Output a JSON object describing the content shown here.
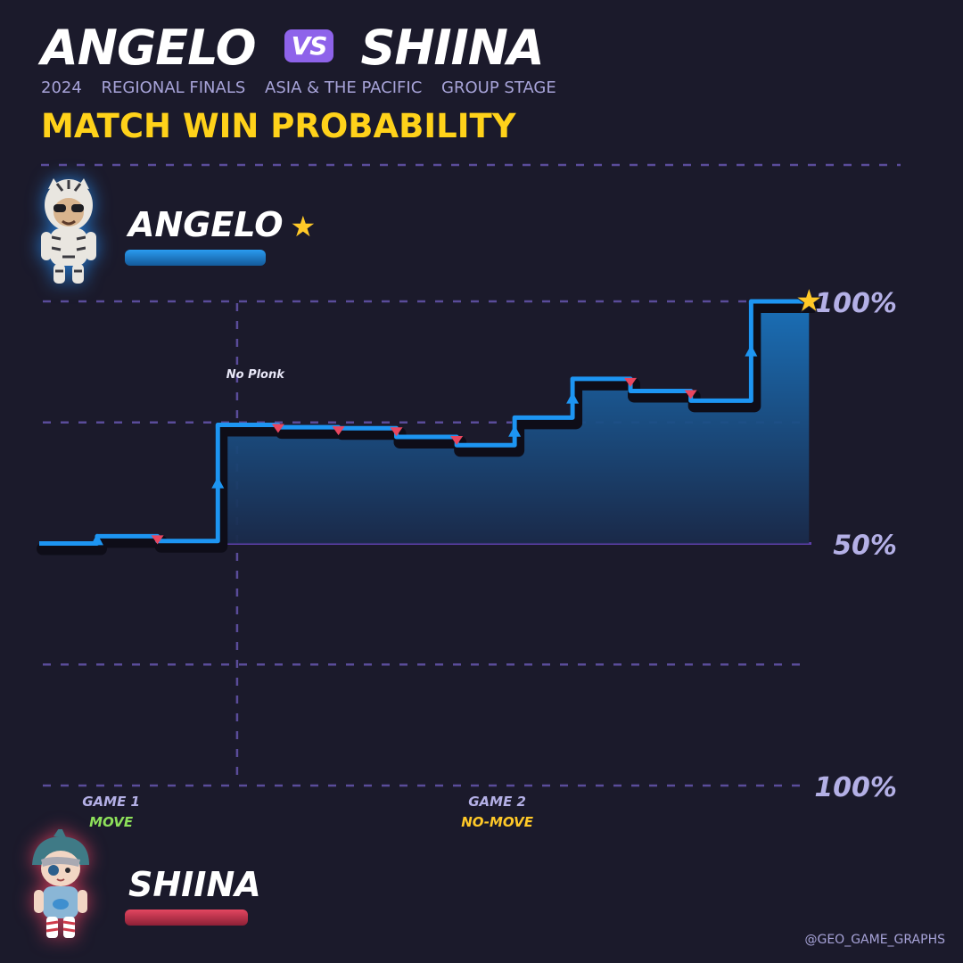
{
  "header": {
    "player1": "ANGELO",
    "vs": "VS",
    "player2": "SHIINA",
    "subtitle": [
      "2024",
      "REGIONAL FINALS",
      "ASIA & THE PACIFIC",
      "GROUP STAGE"
    ],
    "heading": "MATCH WIN PROBABILITY"
  },
  "players": {
    "top": {
      "name": "ANGELO",
      "winner_star": "★",
      "color": "#1e8cef"
    },
    "bottom": {
      "name": "SHIINA",
      "color": "#e0455e"
    }
  },
  "credit": "@GEO_GAME_GRAPHS",
  "colors": {
    "background": "#1b1a2b",
    "line": "#1d95f2",
    "up_marker": "#1d95f2",
    "down_marker": "#e8465f",
    "grid": "#5a4c9a",
    "tick_label": "#b4b0e6",
    "gold": "#ffd21a"
  },
  "chart_data": {
    "type": "line",
    "description_axis": "win probability, 100% ANGELO (top) to 100% SHIINA (bottom)",
    "y_ticks": [
      {
        "value": 100,
        "label": "100%"
      },
      {
        "value": 50,
        "label": "50%"
      },
      {
        "value": 0,
        "label": "100%"
      }
    ],
    "ylim": [
      0,
      100
    ],
    "x_range": [
      0,
      32
    ],
    "step_points": [
      {
        "x": 0,
        "y": 50,
        "event": "start"
      },
      {
        "x": 2.4,
        "y": 51.5,
        "event": "up"
      },
      {
        "x": 4.9,
        "y": 50.5,
        "event": "down"
      },
      {
        "x": 7.4,
        "y": 74.5,
        "event": "up",
        "annotation": "No Plonk"
      },
      {
        "x": 9.9,
        "y": 74.0,
        "event": "down"
      },
      {
        "x": 12.4,
        "y": 73.8,
        "event": "down"
      },
      {
        "x": 14.8,
        "y": 72.0,
        "event": "down"
      },
      {
        "x": 17.3,
        "y": 70.3,
        "event": "down"
      },
      {
        "x": 19.7,
        "y": 76.0,
        "event": "up"
      },
      {
        "x": 22.1,
        "y": 84.0,
        "event": "up"
      },
      {
        "x": 24.5,
        "y": 81.5,
        "event": "down"
      },
      {
        "x": 27.0,
        "y": 79.5,
        "event": "down"
      },
      {
        "x": 29.5,
        "y": 100,
        "event": "up"
      }
    ],
    "x_end": 31.9,
    "game_divider_x": 8.2,
    "games": [
      {
        "label": "GAME 1",
        "mode": "MOVE",
        "mode_color": "#8de05a",
        "x": 4.9
      },
      {
        "label": "GAME 2",
        "mode": "NO-MOVE",
        "mode_color": "#ffc928",
        "x": 20.9
      }
    ],
    "annotations": [
      {
        "text": "No Plonk",
        "x": 7.75,
        "y": 75
      }
    ],
    "winner": "ANGELO"
  }
}
